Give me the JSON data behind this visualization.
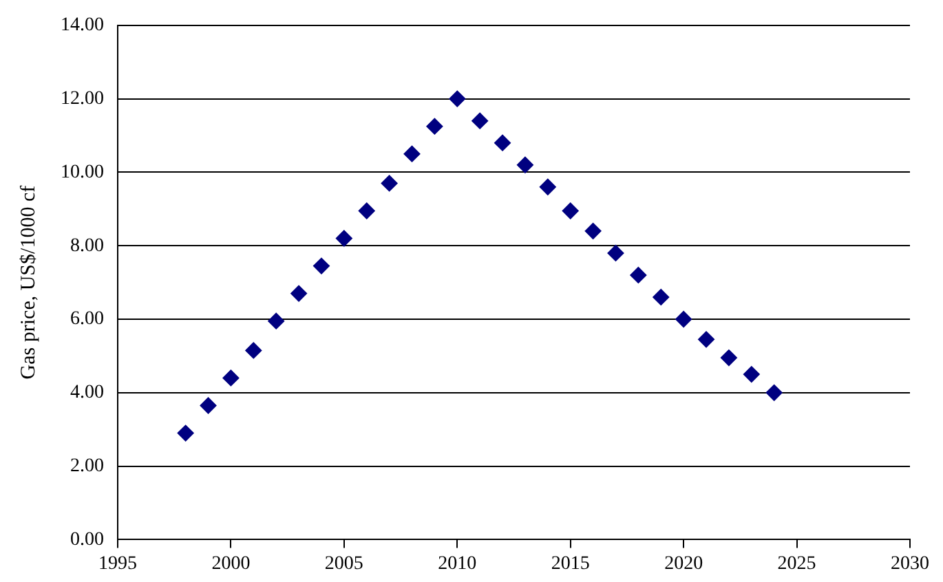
{
  "chart_data": {
    "type": "scatter",
    "ylabel": "Gas price, US$/1000 cf",
    "x": [
      1998,
      1999,
      2000,
      2001,
      2002,
      2003,
      2004,
      2005,
      2006,
      2007,
      2008,
      2009,
      2010,
      2011,
      2012,
      2013,
      2014,
      2015,
      2016,
      2017,
      2018,
      2019,
      2020,
      2021,
      2022,
      2023,
      2024
    ],
    "series": [
      {
        "color": "#000080",
        "values": [
          2.9,
          3.65,
          4.4,
          5.15,
          5.95,
          6.7,
          7.45,
          8.2,
          8.95,
          9.7,
          10.5,
          11.25,
          12.0,
          11.4,
          10.8,
          10.2,
          9.6,
          8.95,
          8.4,
          7.8,
          7.2,
          6.6,
          6.0,
          5.45,
          4.95,
          4.5,
          4.0
        ]
      }
    ],
    "xlim": [
      1995,
      2030
    ],
    "xticks": [
      1995,
      2000,
      2005,
      2010,
      2015,
      2020,
      2025,
      2030
    ],
    "ylim": [
      0,
      14
    ],
    "yticks": [
      {
        "value": 0,
        "label": "0.00"
      },
      {
        "value": 2,
        "label": "2.00"
      },
      {
        "value": 4,
        "label": "4.00"
      },
      {
        "value": 6,
        "label": "6.00"
      },
      {
        "value": 8,
        "label": "8.00"
      },
      {
        "value": 10,
        "label": "10.00"
      },
      {
        "value": 12,
        "label": "12.00"
      },
      {
        "value": 14,
        "label": "14.00"
      }
    ],
    "grid": "y",
    "legend": false,
    "marker": "diamond"
  }
}
